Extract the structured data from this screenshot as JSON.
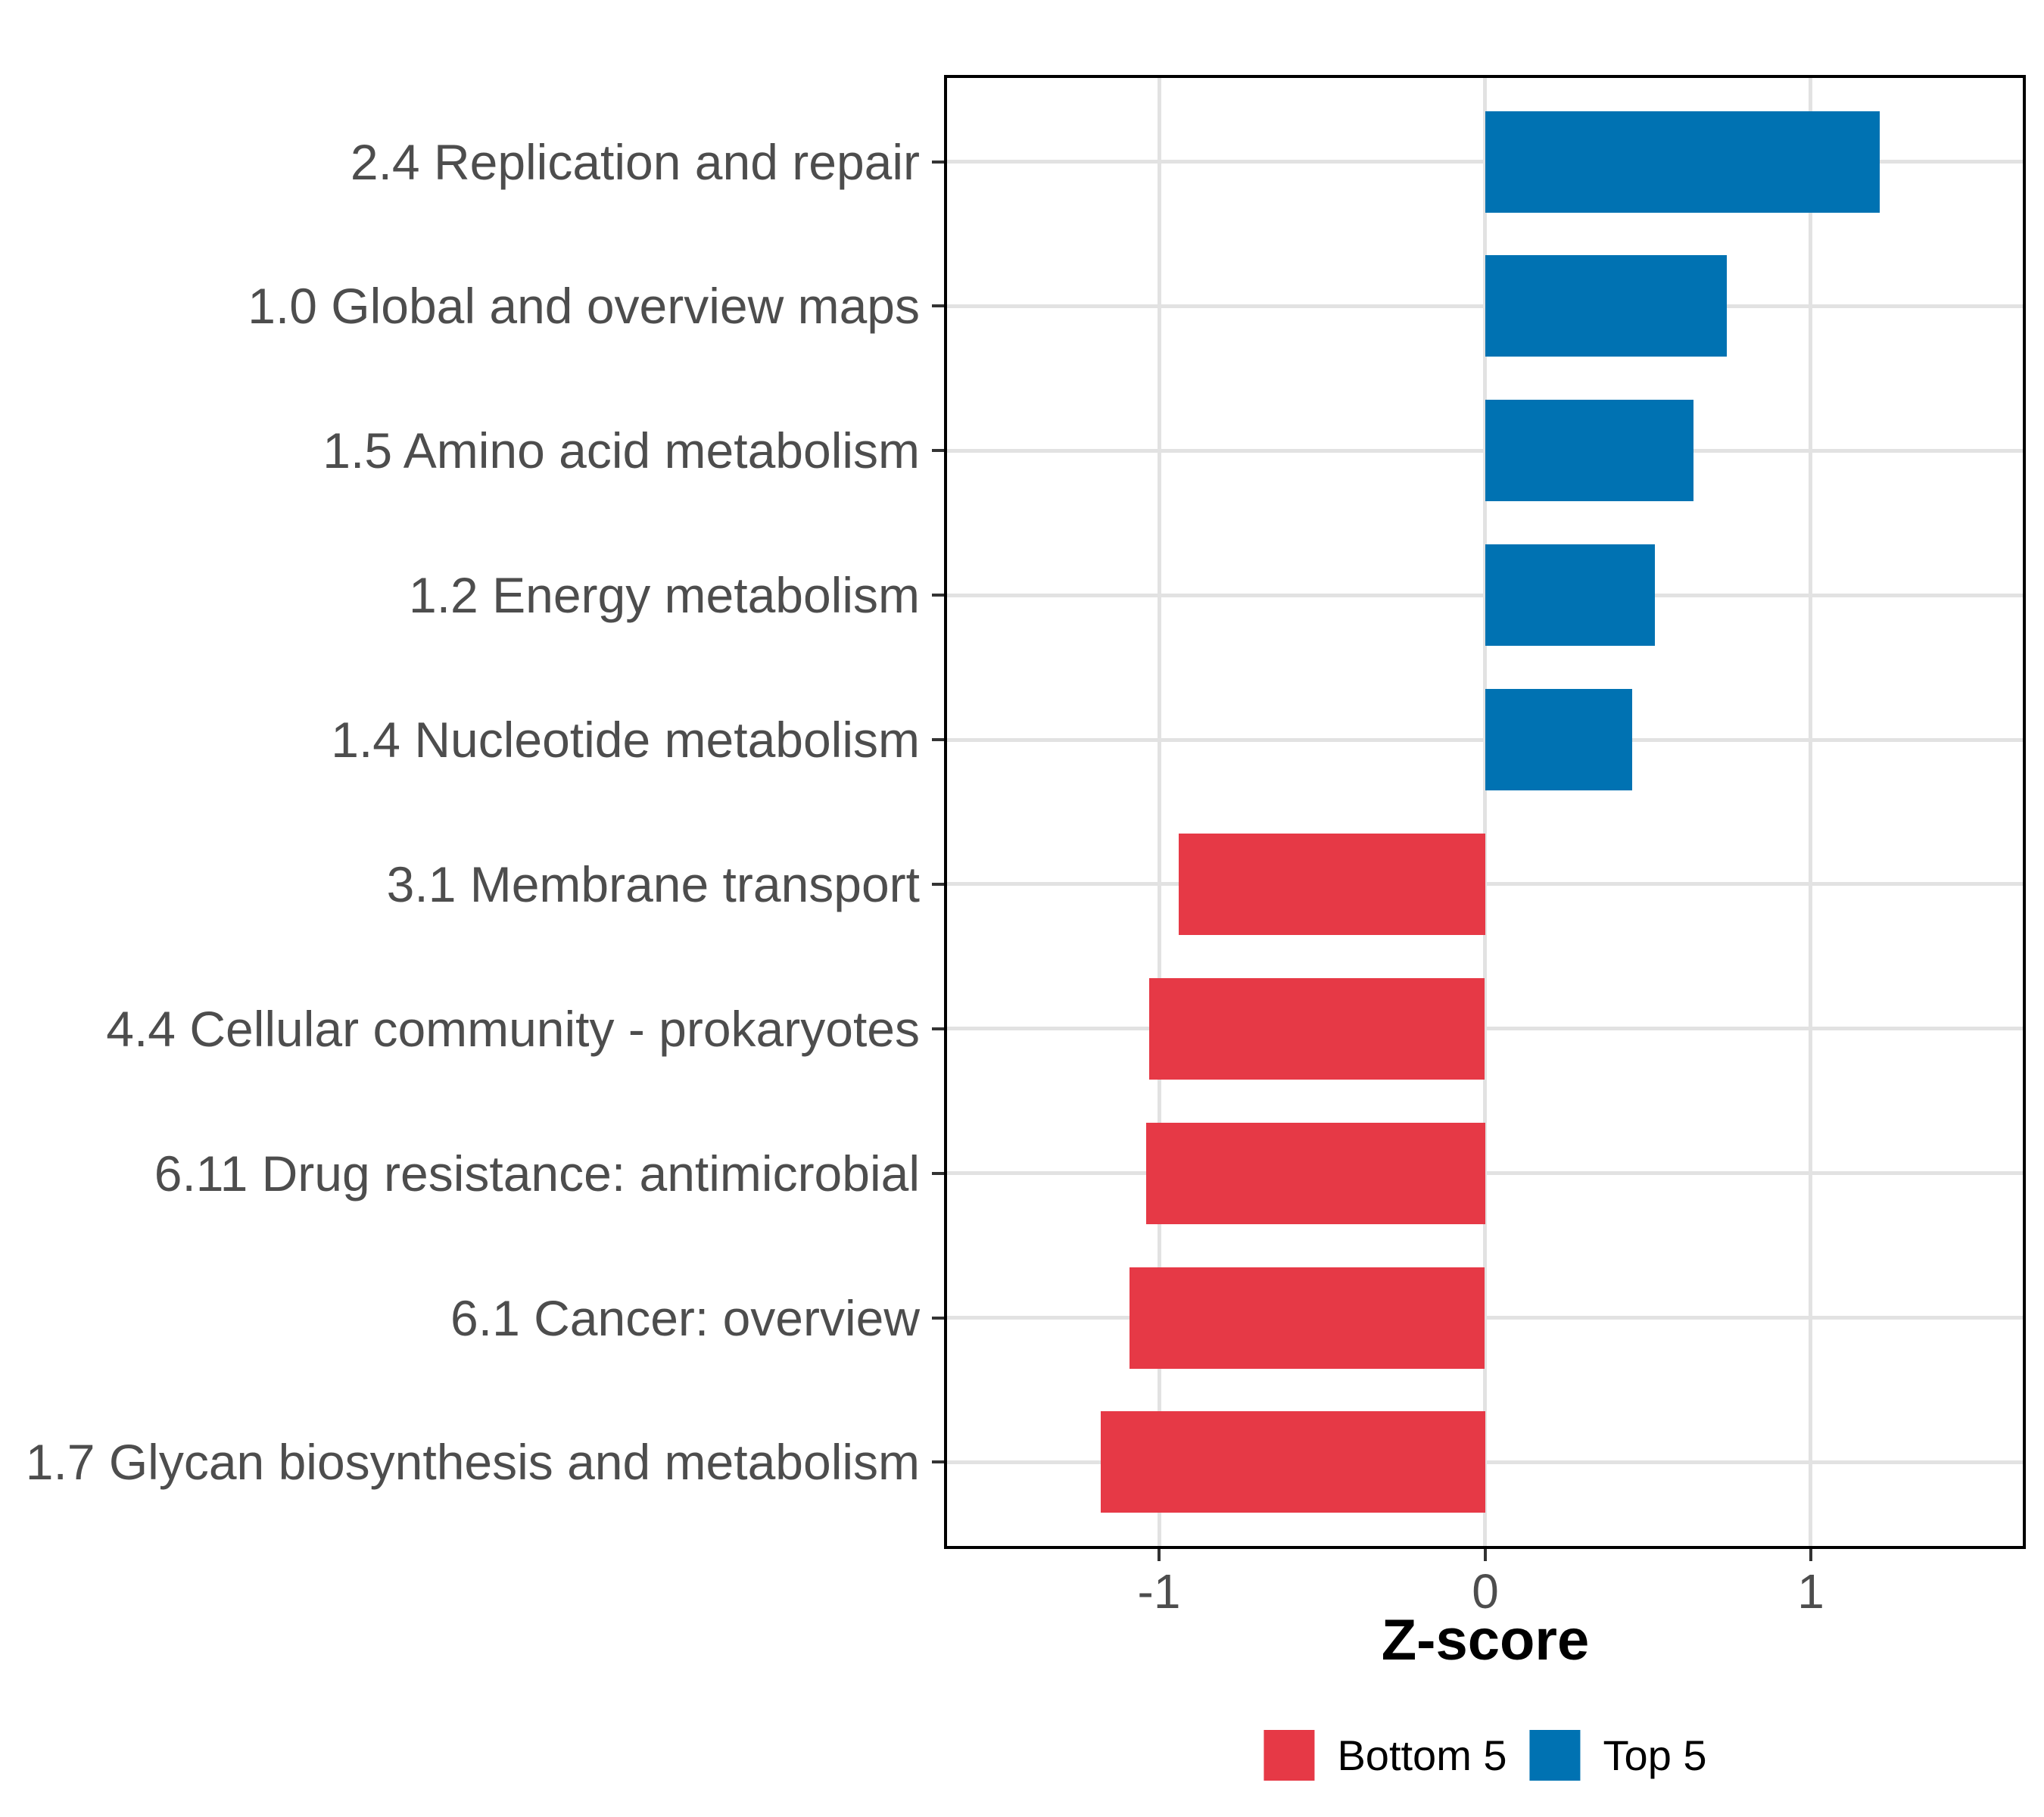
{
  "figure": {
    "background": "#ffffff"
  },
  "style": {
    "grid_color": "#e2e2e2",
    "axis_text_color": "#4d4d4d",
    "tick_color": "#333333",
    "panel_border_color": "#000000"
  },
  "chart_data": {
    "type": "bar",
    "orientation": "horizontal",
    "title": "",
    "xlabel": "Z-score",
    "ylabel": "",
    "x_domain": [
      -1.66,
      1.66
    ],
    "x_ticks": [
      -1,
      0,
      1
    ],
    "grid": true,
    "legend_position": "bottom",
    "bars": [
      {
        "category": "2.4 Replication and repair",
        "value": 1.21,
        "group": "Top 5"
      },
      {
        "category": "1.0 Global and overview maps",
        "value": 0.74,
        "group": "Top 5"
      },
      {
        "category": "1.5 Amino acid metabolism",
        "value": 0.64,
        "group": "Top 5"
      },
      {
        "category": "1.2 Energy metabolism",
        "value": 0.52,
        "group": "Top 5"
      },
      {
        "category": "1.4 Nucleotide metabolism",
        "value": 0.45,
        "group": "Top 5"
      },
      {
        "category": "3.1 Membrane transport",
        "value": -0.94,
        "group": "Bottom 5"
      },
      {
        "category": "4.4 Cellular community - prokaryotes",
        "value": -1.03,
        "group": "Bottom 5"
      },
      {
        "category": "6.11 Drug resistance: antimicrobial",
        "value": -1.04,
        "group": "Bottom 5"
      },
      {
        "category": "6.1 Cancer: overview",
        "value": -1.09,
        "group": "Bottom 5"
      },
      {
        "category": "1.7 Glycan biosynthesis and metabolism",
        "value": -1.18,
        "group": "Bottom 5"
      }
    ],
    "groups": [
      {
        "name": "Bottom 5",
        "color": "#e63946"
      },
      {
        "name": "Top 5",
        "color": "#0072b2"
      }
    ]
  }
}
